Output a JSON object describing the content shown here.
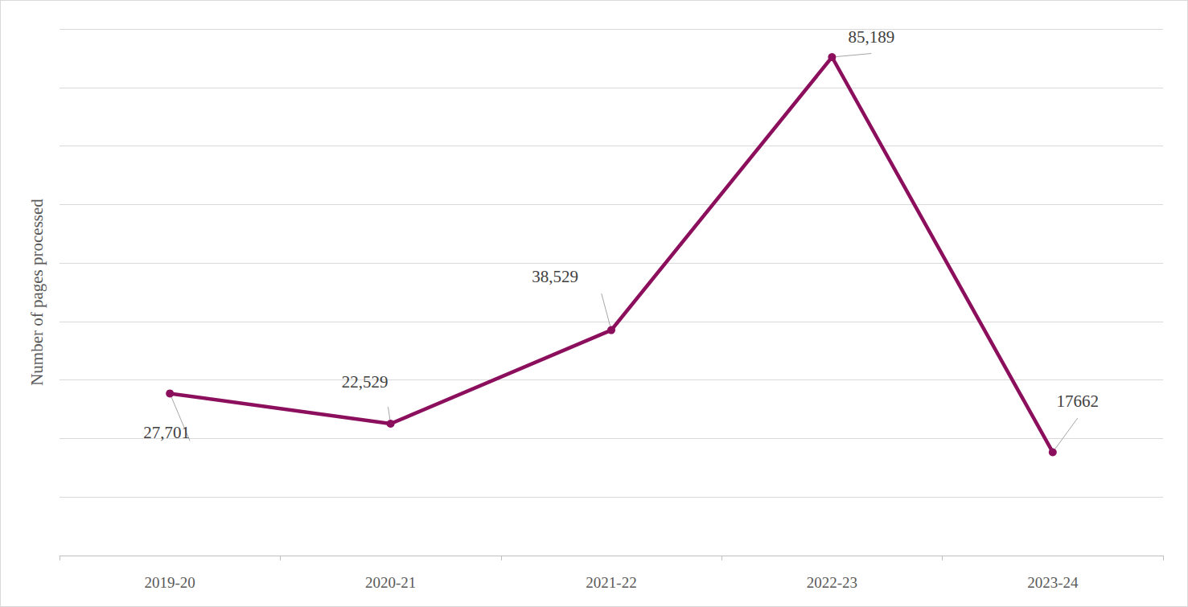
{
  "chart_data": {
    "type": "line",
    "y_label": "Number of pages processed",
    "categories": [
      "2019-20",
      "2020-21",
      "2021-22",
      "2022-23",
      "2023-24"
    ],
    "values": [
      27701,
      22529,
      38529,
      85189,
      17662
    ],
    "value_labels": [
      "27,701",
      "22,529",
      "38,529",
      "85,189",
      "17662"
    ],
    "color": "#8b0f5c",
    "ylim": [
      0,
      90000
    ],
    "yticks": [
      0,
      10000,
      20000,
      30000,
      40000,
      50000,
      60000,
      70000,
      80000,
      90000
    ],
    "grid": true,
    "data_labels": true,
    "tick_labels": "x"
  }
}
